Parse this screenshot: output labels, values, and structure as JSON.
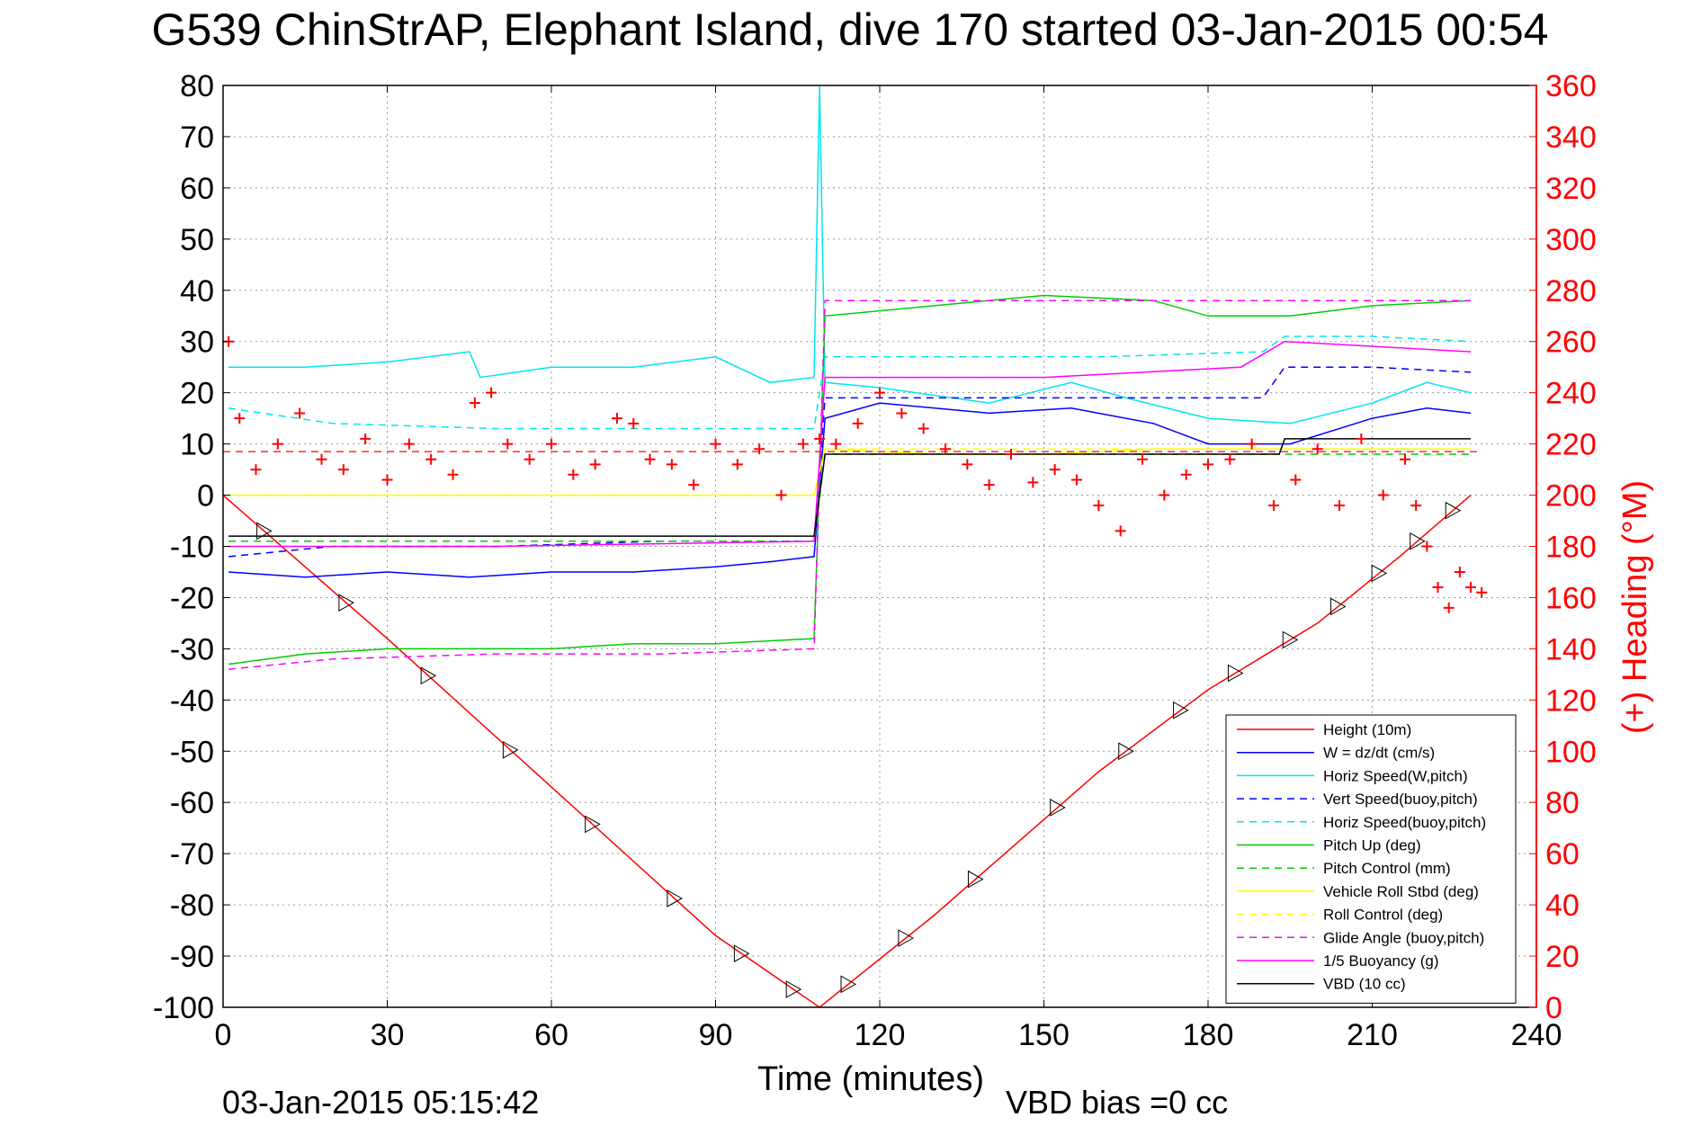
{
  "chart_data": {
    "type": "line",
    "title": "G539 ChinStrAP, Elephant Island, dive 170 started 03-Jan-2015 00:54",
    "xlabel": "Time (minutes)",
    "ylabel_right": "(+) Heading (°M)",
    "footer_left": "03-Jan-2015 05:15:42",
    "footer_right": "VBD bias =0 cc",
    "xlim": [
      0,
      240
    ],
    "ylim_left": [
      -100,
      80
    ],
    "ylim_right": [
      0,
      360
    ],
    "xticks": [
      "0",
      "30",
      "60",
      "90",
      "120",
      "150",
      "180",
      "210",
      "240"
    ],
    "yticks_left": [
      "80",
      "70",
      "60",
      "50",
      "40",
      "30",
      "20",
      "10",
      "0",
      "-10",
      "-20",
      "-30",
      "-40",
      "-50",
      "-60",
      "-70",
      "-80",
      "-90",
      "-100"
    ],
    "yticks_right": [
      "360",
      "340",
      "320",
      "300",
      "280",
      "260",
      "240",
      "220",
      "200",
      "180",
      "160",
      "140",
      "120",
      "100",
      "80",
      "60",
      "40",
      "20",
      "0"
    ],
    "grid": true,
    "legend_position": "bottom-right",
    "colors": {
      "red": "#ff0000",
      "blue": "#0000ff",
      "cyan": "#00e5ee",
      "green": "#00cc00",
      "yellow": "#ffff00",
      "magenta": "#ff00ff",
      "black": "#000000"
    },
    "series": [
      {
        "name": "Height (10m)",
        "color": "#ff0000",
        "dash": false,
        "x": [
          0,
          30,
          60,
          90,
          109,
          130,
          160,
          180,
          200,
          215,
          228
        ],
        "y": [
          0,
          -28,
          -57,
          -86,
          -100,
          -82,
          -54,
          -38,
          -25,
          -12,
          0
        ]
      },
      {
        "name": "W = dz/dt (cm/s)",
        "color": "#0000ff",
        "dash": false,
        "x": [
          1,
          15,
          30,
          45,
          60,
          75,
          90,
          100,
          108,
          110,
          120,
          140,
          155,
          170,
          180,
          195,
          210,
          220,
          228
        ],
        "y": [
          -15,
          -16,
          -15,
          -16,
          -15,
          -15,
          -14,
          -13,
          -12,
          15,
          18,
          16,
          17,
          14,
          10,
          10,
          15,
          17,
          16
        ]
      },
      {
        "name": "Horiz Speed(W,pitch)",
        "color": "#00e5ee",
        "dash": false,
        "x": [
          1,
          15,
          30,
          45,
          47,
          60,
          75,
          90,
          100,
          108,
          109,
          110,
          120,
          140,
          155,
          165,
          180,
          195,
          210,
          220,
          228
        ],
        "y": [
          25,
          25,
          26,
          28,
          23,
          25,
          25,
          27,
          22,
          23,
          80,
          22,
          21,
          18,
          22,
          19,
          15,
          14,
          18,
          22,
          20
        ]
      },
      {
        "name": "Vert Speed(buoy,pitch)",
        "color": "#0000ff",
        "dash": true,
        "x": [
          1,
          20,
          50,
          80,
          108,
          110,
          130,
          160,
          190,
          194,
          210,
          228
        ],
        "y": [
          -12,
          -10,
          -10,
          -9,
          -9,
          19,
          19,
          19,
          19,
          25,
          25,
          24
        ]
      },
      {
        "name": "Horiz Speed(buoy,pitch)",
        "color": "#00e5ee",
        "dash": true,
        "x": [
          1,
          20,
          50,
          80,
          108,
          110,
          130,
          160,
          190,
          194,
          210,
          228
        ],
        "y": [
          17,
          14,
          13,
          13,
          13,
          27,
          27,
          27,
          28,
          31,
          31,
          30
        ]
      },
      {
        "name": "Pitch Up (deg)",
        "color": "#00cc00",
        "dash": false,
        "x": [
          1,
          15,
          30,
          45,
          60,
          75,
          90,
          108,
          110,
          130,
          150,
          170,
          180,
          195,
          210,
          228
        ],
        "y": [
          -33,
          -31,
          -30,
          -30,
          -30,
          -29,
          -29,
          -28,
          35,
          37,
          39,
          38,
          35,
          35,
          37,
          38
        ]
      },
      {
        "name": "Pitch Control (mm)",
        "color": "#00cc00",
        "dash": true,
        "x": [
          1,
          50,
          108,
          110,
          160,
          228
        ],
        "y": [
          -9,
          -9,
          -9,
          8,
          8,
          8
        ]
      },
      {
        "name": "Vehicle Roll Stbd (deg)",
        "color": "#ffff00",
        "dash": false,
        "x": [
          1,
          20,
          40,
          60,
          80,
          100,
          108,
          110,
          130,
          150,
          170,
          190,
          210,
          228
        ],
        "y": [
          0,
          0,
          0,
          0,
          0,
          0,
          0,
          9,
          8,
          8,
          9,
          9,
          9,
          9
        ]
      },
      {
        "name": "Roll Control (deg)",
        "color": "#ffff00",
        "dash": true,
        "x": [
          1,
          50,
          108,
          110,
          160,
          228
        ],
        "y": [
          0,
          0,
          0,
          9,
          9,
          9
        ]
      },
      {
        "name": "Glide Angle (buoy,pitch)",
        "color": "#ff00ff",
        "dash": true,
        "x": [
          1,
          20,
          50,
          80,
          108,
          110,
          150,
          190,
          210,
          228
        ],
        "y": [
          -34,
          -32,
          -31,
          -31,
          -30,
          38,
          38,
          38,
          38,
          38
        ]
      },
      {
        "name": "1/5 Buoyancy (g)",
        "color": "#ff00ff",
        "dash": false,
        "x": [
          1,
          50,
          108,
          110,
          150,
          186,
          194,
          228
        ],
        "y": [
          -10,
          -10,
          -9,
          23,
          23,
          25,
          30,
          28
        ]
      },
      {
        "name": "VBD (10 cc)",
        "color": "#000000",
        "dash": false,
        "x": [
          1,
          50,
          108,
          110,
          150,
          193,
          194,
          228
        ],
        "y": [
          -8,
          -8,
          -8,
          8,
          8,
          8,
          11,
          11
        ]
      }
    ],
    "heading_series": {
      "name": "(+) Heading",
      "color": "#ff0000",
      "mean": 217,
      "x": [
        1,
        3,
        6,
        10,
        14,
        18,
        22,
        26,
        30,
        34,
        38,
        42,
        46,
        49,
        52,
        56,
        60,
        64,
        68,
        72,
        75,
        78,
        82,
        86,
        90,
        94,
        98,
        102,
        106,
        109,
        112,
        116,
        120,
        124,
        128,
        132,
        136,
        140,
        144,
        148,
        152,
        156,
        160,
        164,
        168,
        172,
        176,
        180,
        184,
        188,
        192,
        196,
        200,
        204,
        208,
        212,
        216,
        218,
        220,
        222,
        224,
        226,
        228,
        230
      ],
      "y": [
        260,
        230,
        210,
        220,
        232,
        214,
        210,
        222,
        206,
        220,
        214,
        208,
        236,
        240,
        220,
        214,
        220,
        208,
        212,
        230,
        228,
        214,
        212,
        204,
        220,
        212,
        218,
        200,
        220,
        222,
        220,
        228,
        240,
        232,
        226,
        218,
        212,
        204,
        216,
        205,
        210,
        206,
        196,
        186,
        214,
        200,
        208,
        212,
        214,
        220,
        196,
        206,
        218,
        196,
        222,
        200,
        214,
        196,
        180,
        164,
        156,
        170,
        164,
        162
      ]
    }
  }
}
